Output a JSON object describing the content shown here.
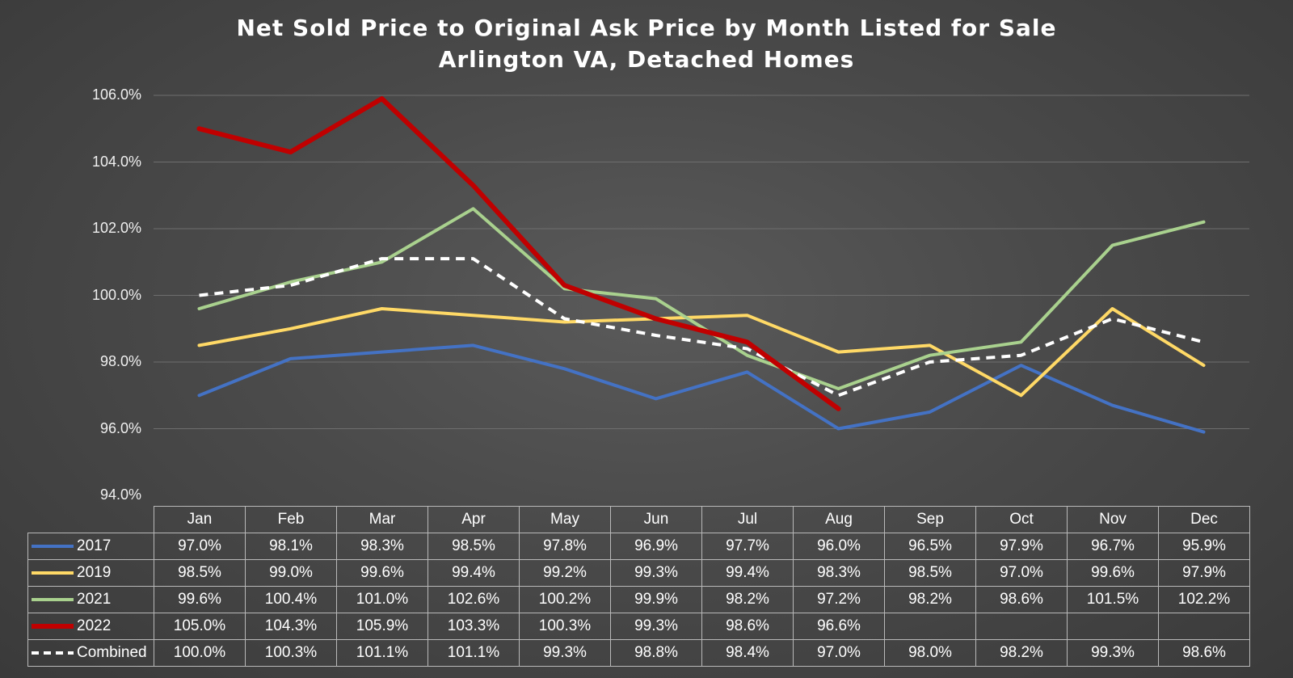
{
  "chart_data": {
    "type": "line",
    "title": "Net Sold Price to Original Ask Price by Month Listed for Sale",
    "subtitle": "Arlington VA, Detached Homes",
    "categories": [
      "Jan",
      "Feb",
      "Mar",
      "Apr",
      "May",
      "Jun",
      "Jul",
      "Aug",
      "Sep",
      "Oct",
      "Nov",
      "Dec"
    ],
    "ylim": [
      94,
      106
    ],
    "yticks": [
      "106.0%",
      "104.0%",
      "102.0%",
      "100.0%",
      "98.0%",
      "96.0%",
      "94.0%"
    ],
    "ytick_values": [
      106,
      104,
      102,
      100,
      98,
      96,
      94
    ],
    "grid": true,
    "legend_placement": "data-table",
    "series": [
      {
        "name": "2017",
        "color": "#4472c4",
        "style": "solid",
        "values": [
          97.0,
          98.1,
          98.3,
          98.5,
          97.8,
          96.9,
          97.7,
          96.0,
          96.5,
          97.9,
          96.7,
          95.9
        ],
        "labels": [
          "97.0%",
          "98.1%",
          "98.3%",
          "98.5%",
          "97.8%",
          "96.9%",
          "97.7%",
          "96.0%",
          "96.5%",
          "97.9%",
          "96.7%",
          "95.9%"
        ]
      },
      {
        "name": "2019",
        "color": "#ffd966",
        "style": "solid",
        "values": [
          98.5,
          99.0,
          99.6,
          99.4,
          99.2,
          99.3,
          99.4,
          98.3,
          98.5,
          97.0,
          99.6,
          97.9
        ],
        "labels": [
          "98.5%",
          "99.0%",
          "99.6%",
          "99.4%",
          "99.2%",
          "99.3%",
          "99.4%",
          "98.3%",
          "98.5%",
          "97.0%",
          "99.6%",
          "97.9%"
        ]
      },
      {
        "name": "2021",
        "color": "#a9d18e",
        "style": "solid",
        "values": [
          99.6,
          100.4,
          101.0,
          102.6,
          100.2,
          99.9,
          98.2,
          97.2,
          98.2,
          98.6,
          101.5,
          102.2
        ],
        "labels": [
          "99.6%",
          "100.4%",
          "101.0%",
          "102.6%",
          "100.2%",
          "99.9%",
          "98.2%",
          "97.2%",
          "98.2%",
          "98.6%",
          "101.5%",
          "102.2%"
        ]
      },
      {
        "name": "2022",
        "color": "#c00000",
        "style": "solid-thick",
        "values": [
          105.0,
          104.3,
          105.9,
          103.3,
          100.3,
          99.3,
          98.6,
          96.6,
          null,
          null,
          null,
          null
        ],
        "labels": [
          "105.0%",
          "104.3%",
          "105.9%",
          "103.3%",
          "100.3%",
          "99.3%",
          "98.6%",
          "96.6%",
          "",
          "",
          "",
          ""
        ]
      },
      {
        "name": "Combined",
        "color": "#ffffff",
        "style": "dashed",
        "values": [
          100.0,
          100.3,
          101.1,
          101.1,
          99.3,
          98.8,
          98.4,
          97.0,
          98.0,
          98.2,
          99.3,
          98.6
        ],
        "labels": [
          "100.0%",
          "100.3%",
          "101.1%",
          "101.1%",
          "99.3%",
          "98.8%",
          "98.4%",
          "97.0%",
          "98.0%",
          "98.2%",
          "99.3%",
          "98.6%"
        ]
      }
    ]
  }
}
